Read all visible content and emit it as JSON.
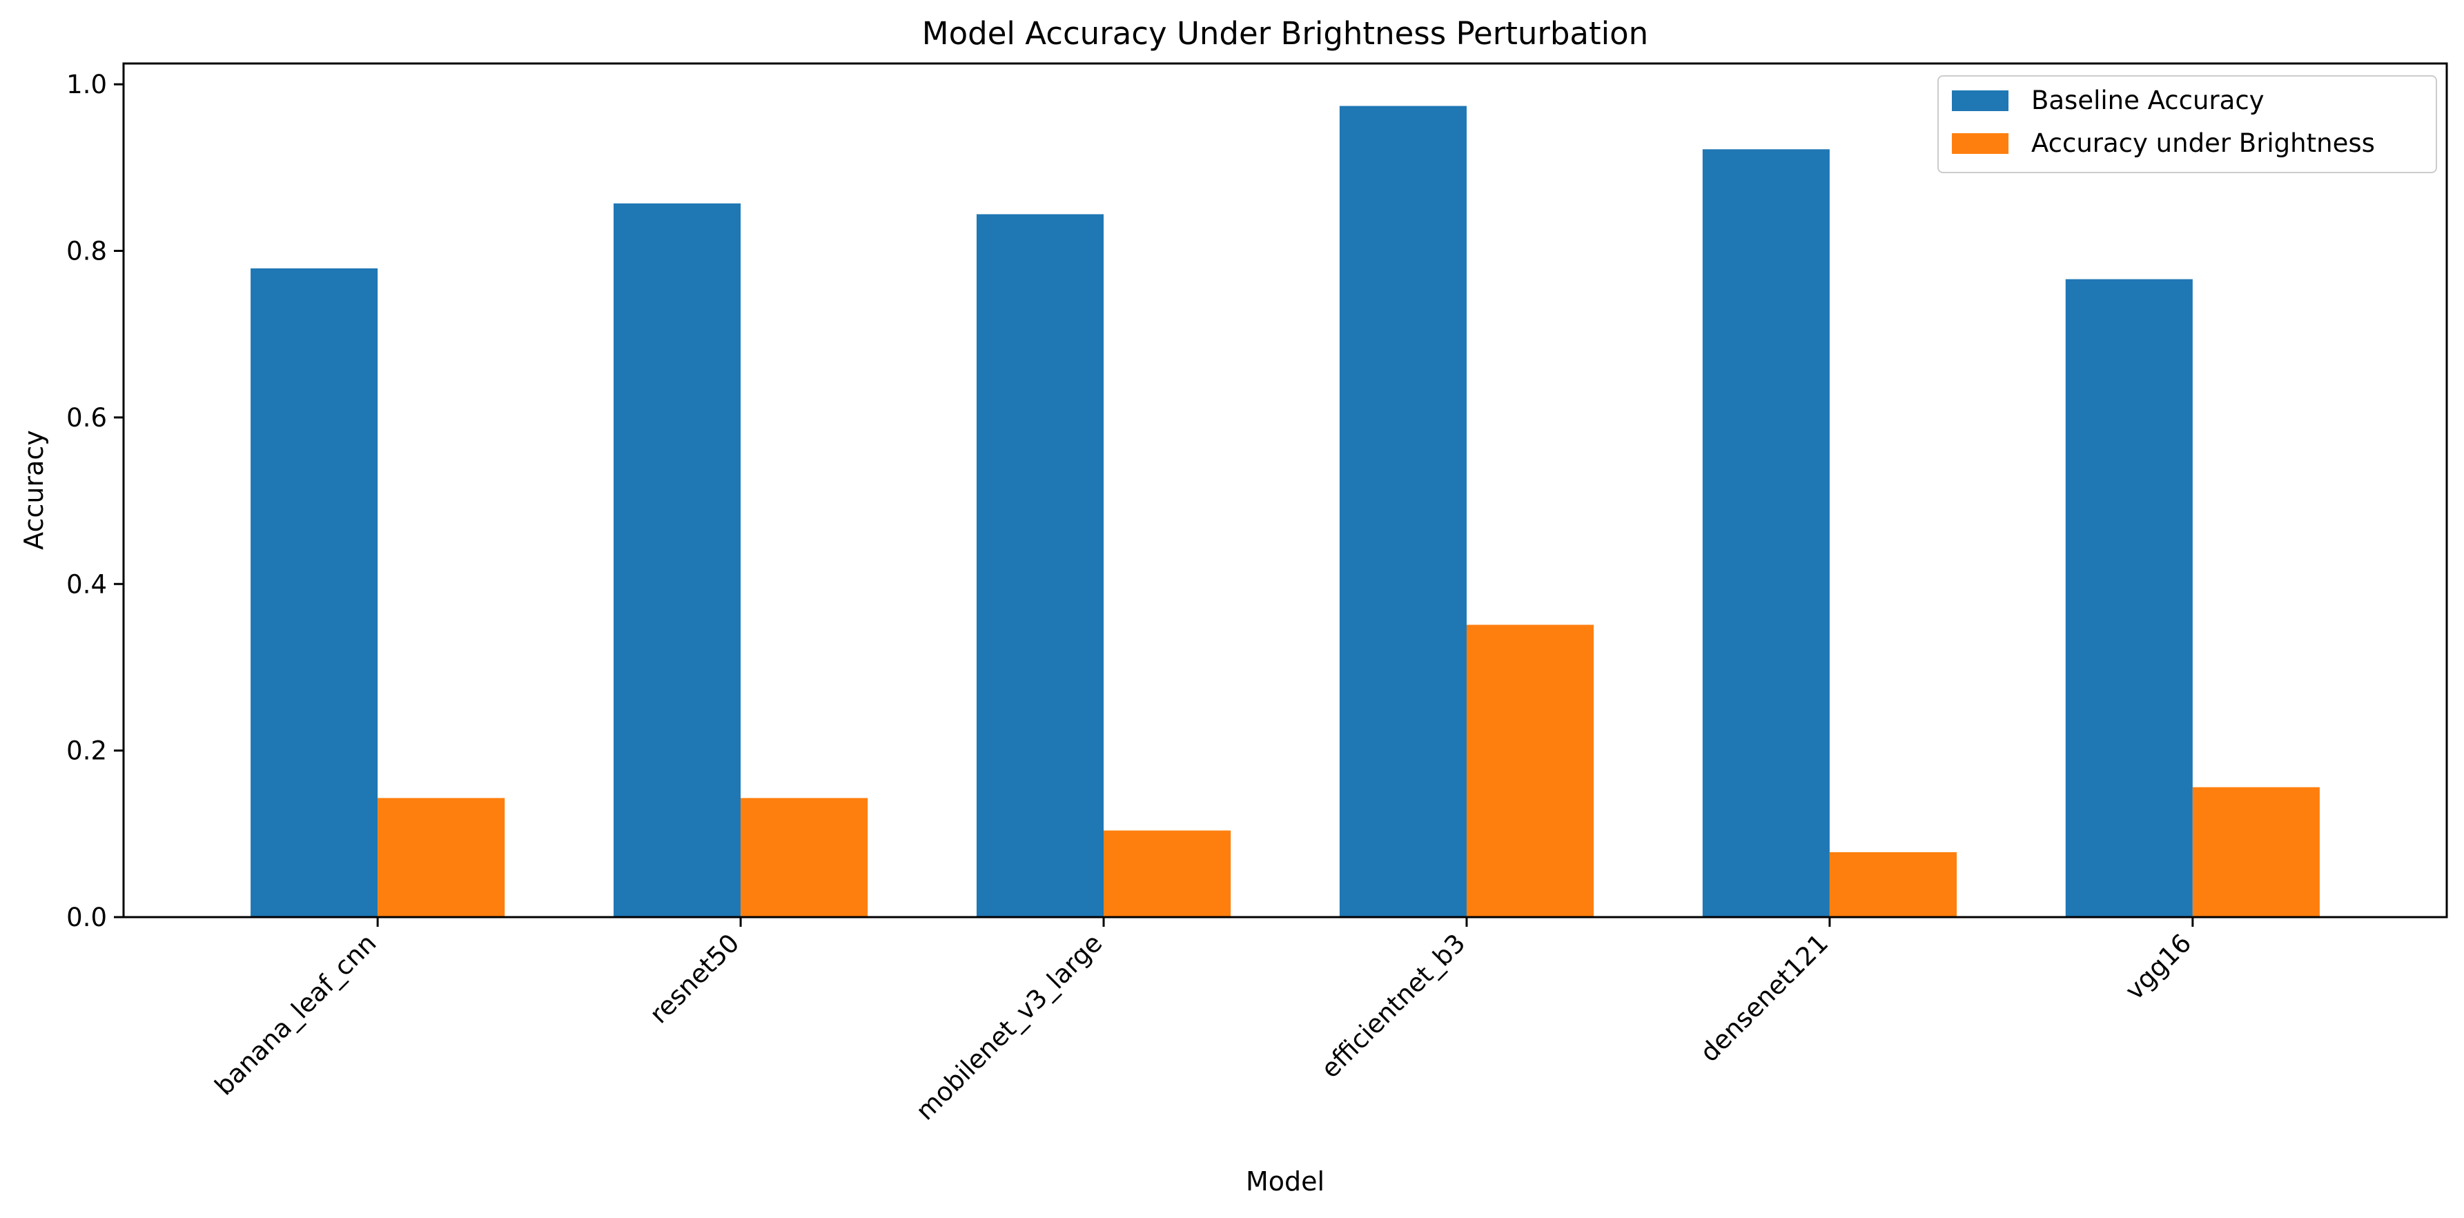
{
  "chart_data": {
    "type": "bar",
    "title": "Model Accuracy Under Brightness Perturbation",
    "xlabel": "Model",
    "ylabel": "Accuracy",
    "categories": [
      "banana_leaf_cnn",
      "resnet50",
      "mobilenet_v3_large",
      "efficientnet_b3",
      "densenet121",
      "vgg16"
    ],
    "series": [
      {
        "name": "Baseline Accuracy",
        "color": "#1f77b4",
        "values": [
          0.779,
          0.857,
          0.844,
          0.974,
          0.922,
          0.766
        ]
      },
      {
        "name": "Accuracy under Brightness",
        "color": "#ff7f0e",
        "values": [
          0.143,
          0.143,
          0.104,
          0.351,
          0.078,
          0.156
        ]
      }
    ],
    "ylim": [
      0,
      1.025
    ],
    "yticks": [
      0.0,
      0.2,
      0.4,
      0.6,
      0.8,
      1.0
    ],
    "ytick_labels": [
      "0.0",
      "0.2",
      "0.4",
      "0.6",
      "0.8",
      "1.0"
    ],
    "legend_position": "top-right",
    "grid": false
  }
}
